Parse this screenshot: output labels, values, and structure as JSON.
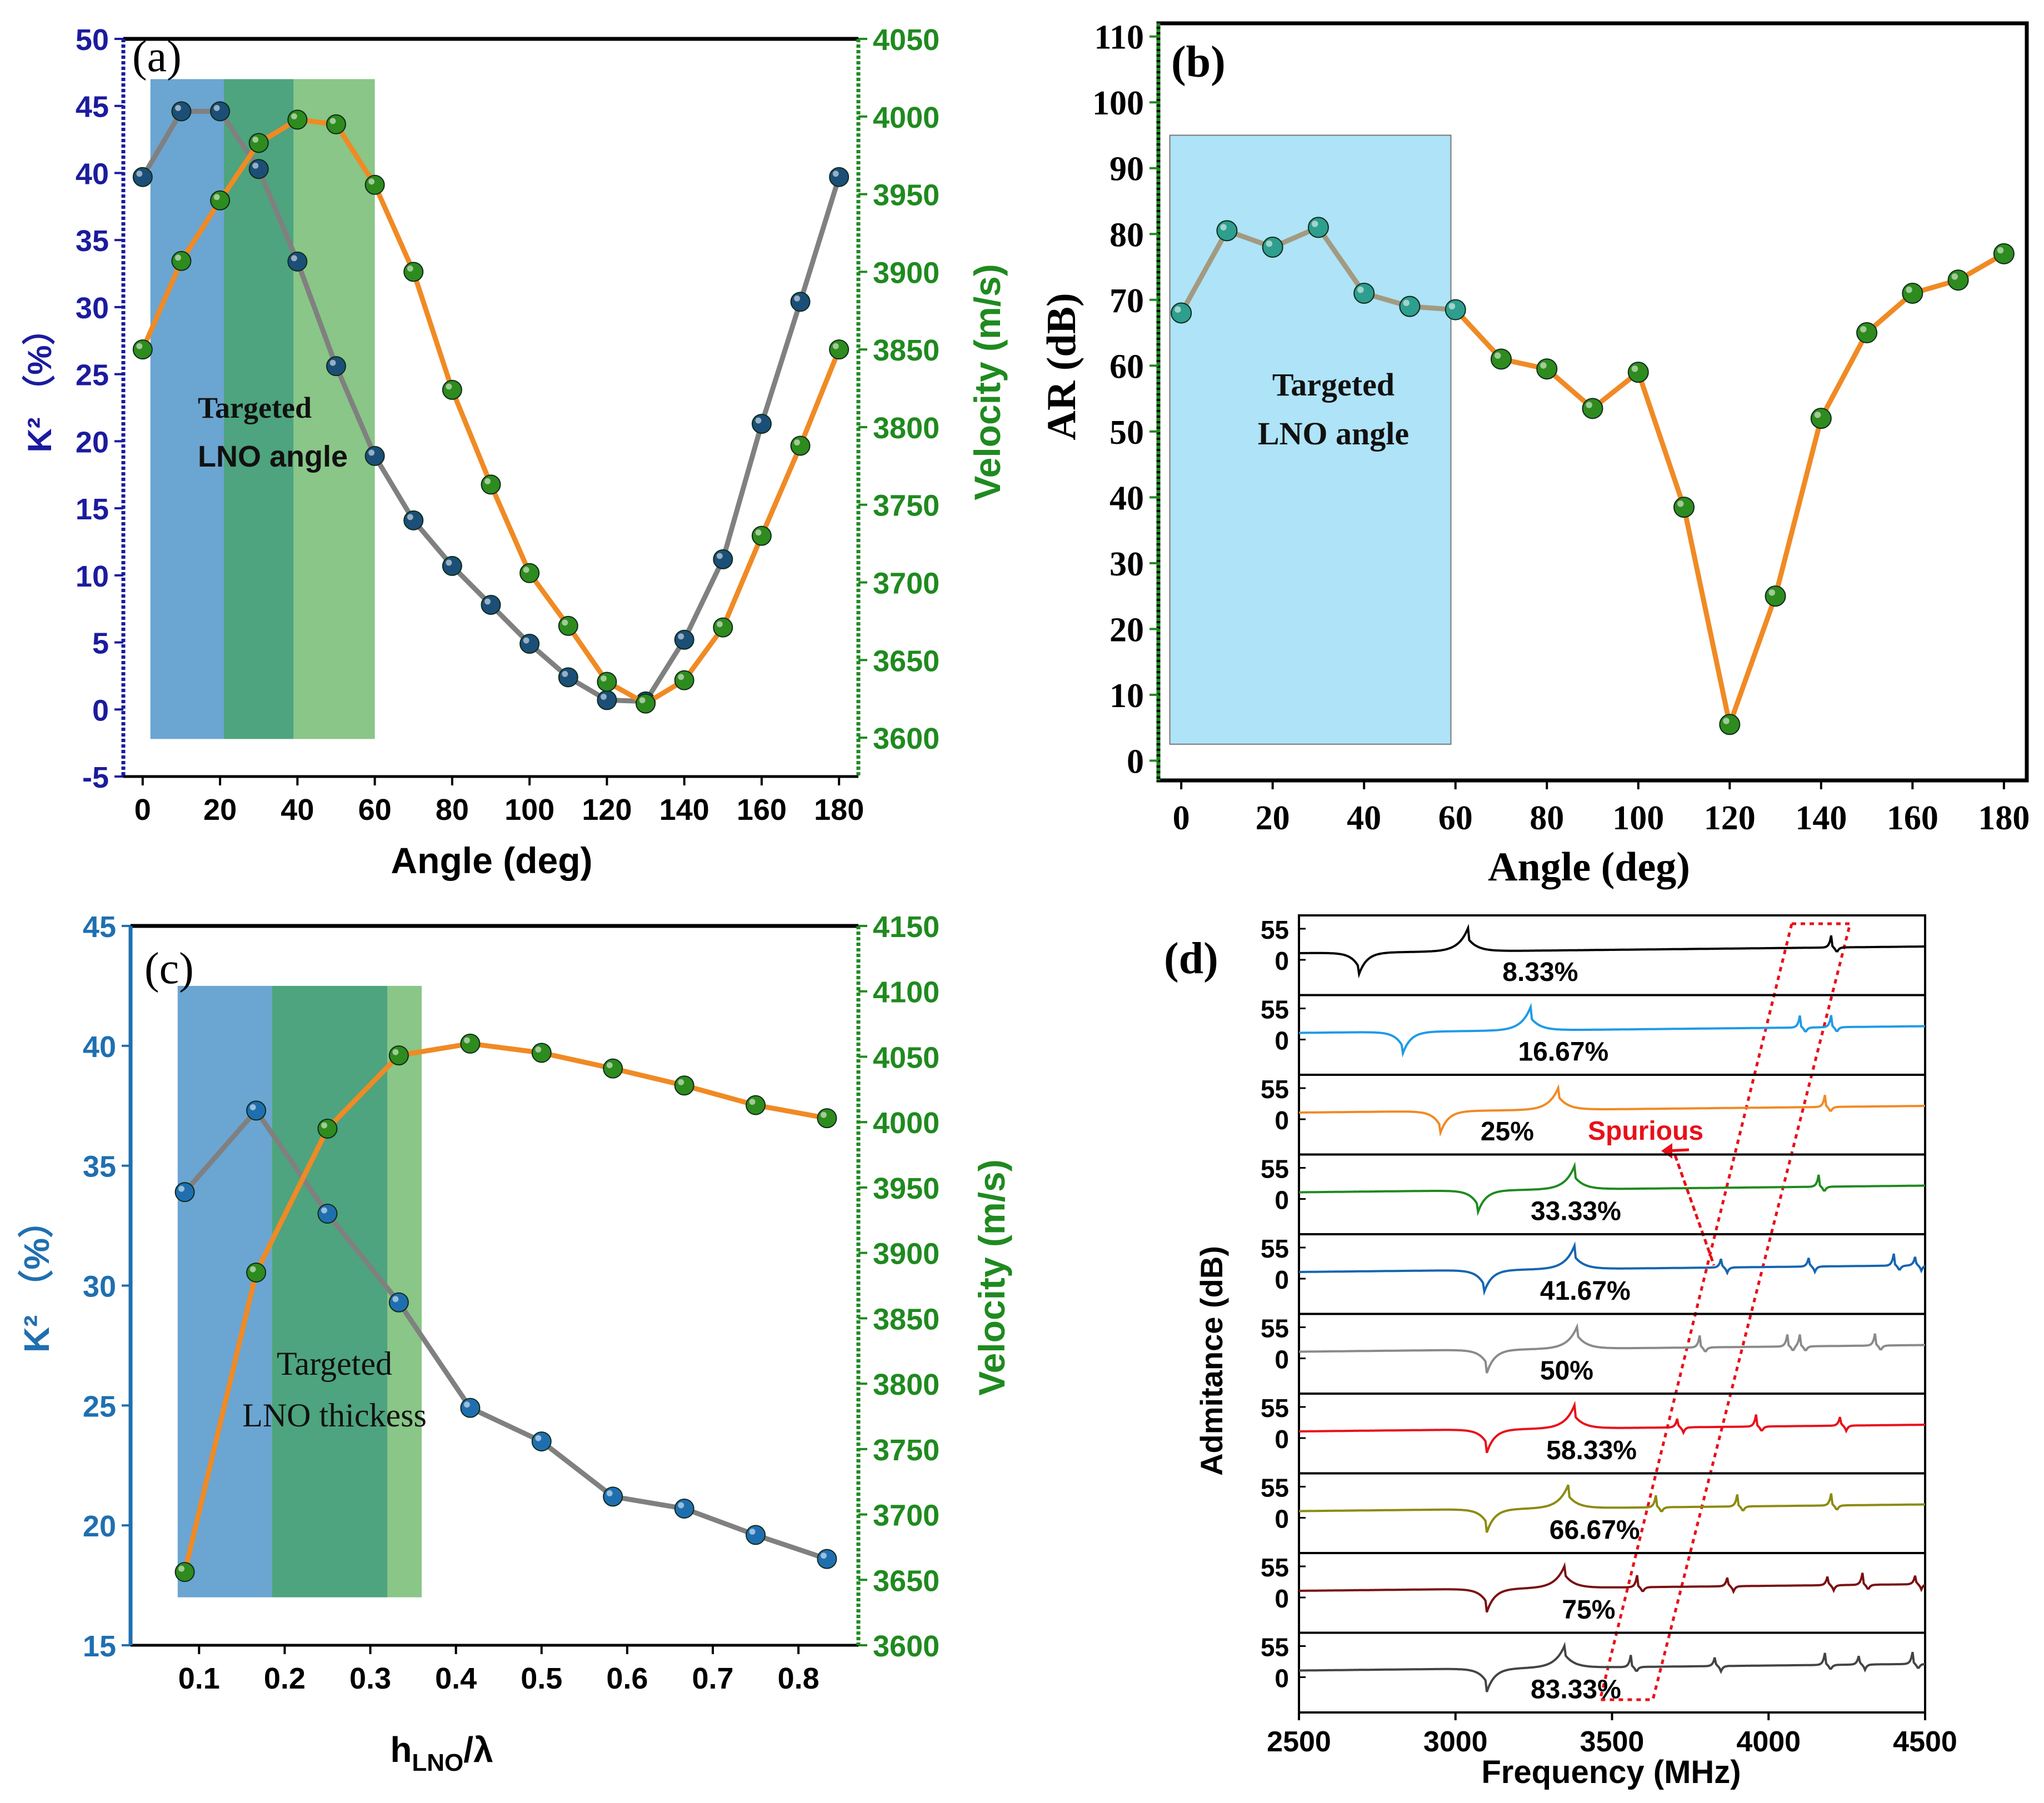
{
  "colors": {
    "navy": "#1b1b9e",
    "green": "#1f8a1f",
    "blue_c": "#1f6fb0",
    "orange": "#f08a24",
    "gray": "#808080",
    "k_marker": "#1b4f78",
    "v_marker": "#2e8b1e",
    "ar_marker_left": "#2e9e8e",
    "band_blue": "#5b9bcd",
    "band_dark_green": "#3a9a70",
    "band_light_green": "#7cc07a",
    "band_cyan": "#aee3f8",
    "spurious_red": "#e8101a"
  },
  "panel_a": {
    "label": "(a)",
    "annotation": [
      "Targeted",
      "LNO angle"
    ],
    "chart_data": {
      "type": "line",
      "xlabel": "Angle (deg)",
      "ylabel_left": "K²  （%）",
      "ylabel_right": "Velocity (m/s)",
      "xlim": [
        -5,
        185
      ],
      "ylim_left": [
        -5,
        50
      ],
      "ylim_right": [
        3575,
        4050
      ],
      "x_ticks": [
        0,
        20,
        40,
        60,
        80,
        100,
        120,
        140,
        160,
        180
      ],
      "y_ticks_left": [
        -5,
        0,
        5,
        10,
        15,
        20,
        25,
        30,
        35,
        40,
        45,
        50
      ],
      "y_ticks_right": [
        3600,
        3650,
        3700,
        3750,
        3800,
        3850,
        3900,
        3950,
        4000,
        4050
      ],
      "bands": [
        {
          "from": 2,
          "to": 21,
          "color": "band_blue"
        },
        {
          "from": 21,
          "to": 39,
          "color": "band_dark_green"
        },
        {
          "from": 39,
          "to": 60,
          "color": "band_light_green"
        }
      ],
      "band_y_range": [
        -2.2,
        47
      ],
      "series": [
        {
          "name": "K²",
          "axis": "left",
          "line_color": "gray",
          "marker_color": "k_marker",
          "x": [
            0,
            10,
            20,
            30,
            40,
            50,
            60,
            70,
            80,
            90,
            100,
            110,
            120,
            130,
            140,
            150,
            160,
            170,
            180
          ],
          "y": [
            39.7,
            44.6,
            44.6,
            40.3,
            33.4,
            25.6,
            18.9,
            14.1,
            10.7,
            7.8,
            4.9,
            2.4,
            0.7,
            0.6,
            5.2,
            11.2,
            21.3,
            30.4,
            39.7
          ]
        },
        {
          "name": "Velocity",
          "axis": "right",
          "line_color": "orange",
          "marker_color": "v_marker",
          "x": [
            0,
            10,
            20,
            30,
            40,
            50,
            60,
            70,
            80,
            90,
            100,
            110,
            120,
            130,
            140,
            150,
            160,
            170,
            180
          ],
          "y": [
            3850,
            3907,
            3946,
            3983,
            3998,
            3995,
            3956,
            3900,
            3824,
            3763,
            3706,
            3672,
            3636,
            3622,
            3637,
            3671,
            3730,
            3788,
            3850
          ]
        }
      ]
    }
  },
  "panel_b": {
    "label": "(b)",
    "annotation": [
      "Targeted",
      "LNO angle"
    ],
    "chart_data": {
      "type": "line",
      "xlabel": "Angle (deg)",
      "ylabel": "AR (dB)",
      "xlim": [
        -5,
        185
      ],
      "ylim": [
        -3,
        112
      ],
      "x_ticks": [
        0,
        20,
        40,
        60,
        80,
        100,
        120,
        140,
        160,
        180
      ],
      "y_ticks": [
        0,
        10,
        20,
        30,
        40,
        50,
        60,
        70,
        80,
        90,
        100,
        110
      ],
      "bands": [
        {
          "from": -2.5,
          "to": 59,
          "color": "band_cyan"
        }
      ],
      "band_y_range": [
        2.5,
        95
      ],
      "series": [
        {
          "name": "AR",
          "line_color": "orange",
          "marker_color": "v_marker",
          "x": [
            0,
            10,
            20,
            30,
            40,
            50,
            60,
            70,
            80,
            90,
            100,
            110,
            120,
            130,
            140,
            150,
            160,
            170,
            180
          ],
          "y": [
            68,
            80.5,
            78,
            81,
            71,
            69,
            68.5,
            61,
            59.5,
            53.5,
            59,
            38.5,
            5.5,
            25,
            52,
            65,
            71,
            73,
            77
          ]
        }
      ]
    }
  },
  "panel_c": {
    "label": "(c)",
    "annotation": [
      "Targeted",
      "LNO thickess"
    ],
    "xlabel_main": "h",
    "xlabel_sub": "LNO",
    "xlabel_tail": "/λ",
    "chart_data": {
      "type": "line",
      "xlabel": "hLNO/λ",
      "ylabel_left": "K²  （%）",
      "ylabel_right": "Velocity (m/s)",
      "xlim": [
        0.02,
        0.87
      ],
      "ylim_left": [
        15,
        45
      ],
      "ylim_right": [
        3600,
        4150
      ],
      "x_ticks": [
        0.1,
        0.2,
        0.3,
        0.4,
        0.5,
        0.6,
        0.7,
        0.8
      ],
      "y_ticks_left": [
        15,
        20,
        25,
        30,
        35,
        40,
        45
      ],
      "y_ticks_right": [
        3600,
        3650,
        3700,
        3750,
        3800,
        3850,
        3900,
        3950,
        4000,
        4050,
        4100,
        4150
      ],
      "bands": [
        {
          "from": 0.075,
          "to": 0.185,
          "color": "band_blue"
        },
        {
          "from": 0.185,
          "to": 0.32,
          "color": "band_dark_green"
        },
        {
          "from": 0.32,
          "to": 0.36,
          "color": "band_light_green"
        }
      ],
      "band_y_range": [
        17,
        42.5
      ],
      "series": [
        {
          "name": "K²",
          "axis": "left",
          "line_color": "gray",
          "marker_color": "blue_c",
          "x": [
            0.0833,
            0.1667,
            0.25,
            0.3333,
            0.4167,
            0.5,
            0.5833,
            0.6667,
            0.75,
            0.8333
          ],
          "y": [
            33.9,
            37.3,
            33.0,
            29.3,
            24.9,
            23.5,
            21.2,
            20.7,
            19.6,
            18.6
          ]
        },
        {
          "name": "Velocity",
          "axis": "right",
          "line_color": "orange",
          "marker_color": "v_marker",
          "x": [
            0.0833,
            0.1667,
            0.25,
            0.3333,
            0.4167,
            0.5,
            0.5833,
            0.6667,
            0.75,
            0.8333
          ],
          "y": [
            3656,
            3885,
            3995,
            4051,
            4060,
            4053,
            4041,
            4028,
            4013,
            4003
          ]
        }
      ]
    }
  },
  "panel_d": {
    "label": "(d)",
    "spurious_label": "Spurious",
    "chart_data": {
      "type": "line",
      "xlabel": "Frequency (MHz)",
      "ylabel": "Admitance (dB)",
      "xlim": [
        2500,
        4500
      ],
      "x_ticks": [
        2500,
        3000,
        3500,
        4000,
        4500
      ],
      "row_y_ticks": [
        0,
        55
      ],
      "rows": [
        {
          "label": "8.33%",
          "color": "#000000",
          "fr": 2690,
          "fa": 3040,
          "spurs": [
            4200
          ],
          "label_x": 3150
        },
        {
          "label": "16.67%",
          "color": "#1e9be6",
          "fr": 2830,
          "fa": 3240,
          "spurs": [
            4100,
            4200
          ],
          "label_x": 3200
        },
        {
          "label": "25%",
          "color": "#f08a24",
          "fr": 2950,
          "fa": 3330,
          "spurs": [
            4180
          ],
          "label_x": 3080
        },
        {
          "label": "33.33%",
          "color": "#1f8a1f",
          "fr": 3070,
          "fa": 3380,
          "spurs": [
            4160
          ],
          "label_x": 3240
        },
        {
          "label": "41.67%",
          "color": "#1565b0",
          "fr": 3090,
          "fa": 3380,
          "spurs": [
            3850,
            4130,
            4400,
            4470
          ],
          "label_x": 3270
        },
        {
          "label": "50%",
          "color": "#8a8a8a",
          "fr": 3100,
          "fa": 3390,
          "spurs": [
            3780,
            4060,
            4100,
            4340
          ],
          "label_x": 3270
        },
        {
          "label": "58.33%",
          "color": "#e8101a",
          "fr": 3100,
          "fa": 3380,
          "spurs": [
            3710,
            3960,
            4230
          ],
          "label_x": 3290
        },
        {
          "label": "66.67%",
          "color": "#8b8b10",
          "fr": 3100,
          "fa": 3360,
          "spurs": [
            3640,
            3900,
            4200
          ],
          "label_x": 3300
        },
        {
          "label": "75%",
          "color": "#7a1010",
          "fr": 3100,
          "fa": 3350,
          "spurs": [
            3580,
            3870,
            4190,
            4300,
            4470
          ],
          "label_x": 3340
        },
        {
          "label": "83.33%",
          "color": "#444444",
          "fr": 3100,
          "fa": 3350,
          "spurs": [
            3560,
            3830,
            4180,
            4290,
            4460
          ],
          "label_x": 3240
        }
      ]
    }
  }
}
